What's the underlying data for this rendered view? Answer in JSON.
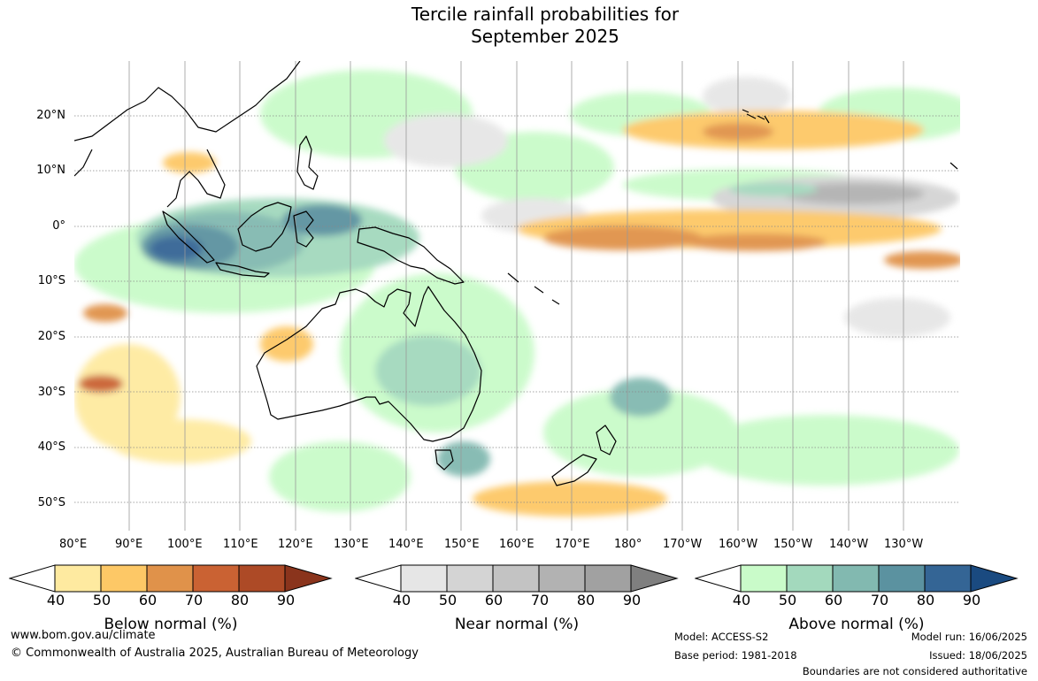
{
  "title": {
    "line1": "Tercile rainfall probabilities for",
    "line2": "September 2025"
  },
  "map": {
    "lat_labels": [
      "20°N",
      "10°N",
      "0°",
      "10°S",
      "20°S",
      "30°S",
      "40°S",
      "50°S"
    ],
    "lon_labels": [
      "80°E",
      "90°E",
      "100°E",
      "110°E",
      "120°E",
      "130°E",
      "140°E",
      "150°E",
      "160°E",
      "170°E",
      "180°",
      "170°W",
      "160°W",
      "150°W",
      "140°W",
      "130°W"
    ],
    "extent": {
      "lon_min": 80,
      "lon_max": 240,
      "lat_min": -55,
      "lat_max": 30
    }
  },
  "colorbars": {
    "ticks": [
      "40",
      "50",
      "60",
      "70",
      "80",
      "90"
    ],
    "below": {
      "label": "Below normal (%)",
      "colors": [
        "#ffffff",
        "#feeaa0",
        "#fdc866",
        "#e0924a",
        "#ca6233",
        "#ad4a26",
        "#8a341c"
      ]
    },
    "near": {
      "label": "Near normal (%)",
      "colors": [
        "#ffffff",
        "#e6e6e6",
        "#d4d4d4",
        "#c3c3c3",
        "#b2b2b2",
        "#a1a1a1",
        "#7f7f7f"
      ]
    },
    "above": {
      "label": "Above normal (%)",
      "colors": [
        "#ffffff",
        "#c9fbc9",
        "#a3d9bd",
        "#82b9b0",
        "#5b92a0",
        "#346595",
        "#1a4a80"
      ]
    }
  },
  "footer": {
    "website": "www.bom.gov.au/climate",
    "copyright": "© Commonwealth of Australia 2025, Australian Bureau of Meteorology",
    "model": "Model: ACCESS-S2",
    "base_period": "Base period: 1981-2018",
    "model_run": "Model run: 16/06/2025",
    "issued": "Issued: 18/06/2025",
    "disclaimer": "Boundaries are not considered authoritative"
  }
}
